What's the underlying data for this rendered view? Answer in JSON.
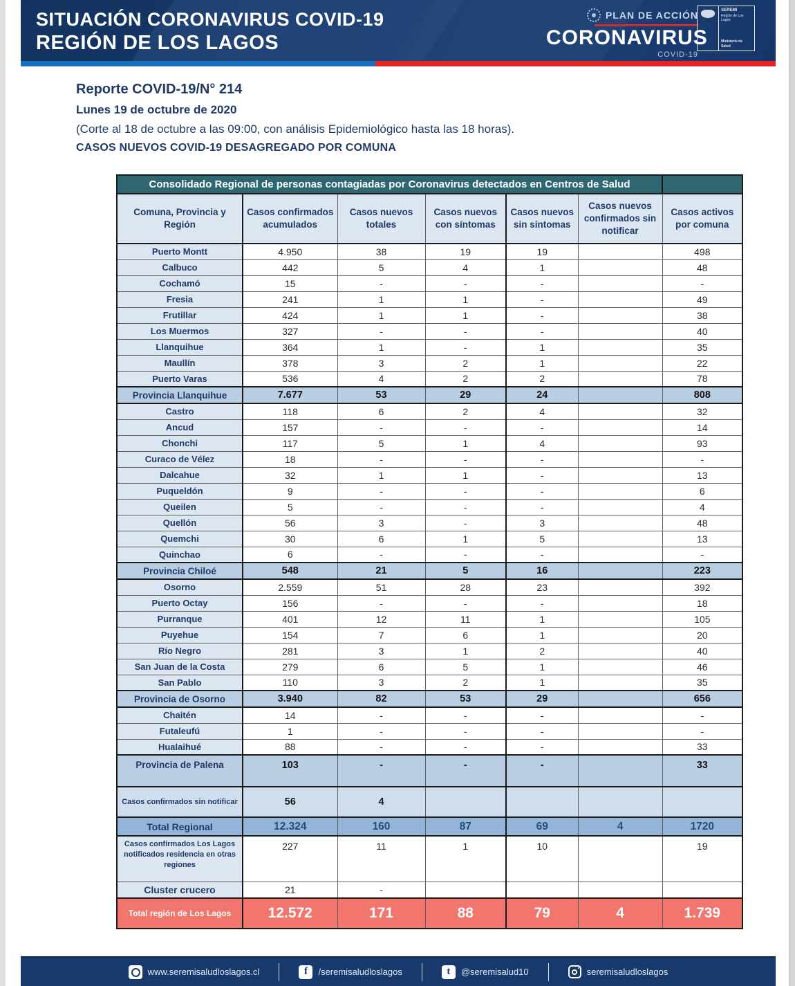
{
  "banner": {
    "title_line1": "SITUACIÓN CORONAVIRUS COVID-19",
    "title_line2": "REGIÓN DE LOS LAGOS",
    "plan_label": "PLAN DE ACCIÓN",
    "brand": "CORONAVIRUS",
    "brand_sub": "COVID-19",
    "seremi_line1": "SEREMI",
    "seremi_line2": "Región de Los Lagos",
    "seremi_line3": "Ministerio de Salud"
  },
  "report": {
    "title": "Reporte COVID-19/N° 214",
    "date": "Lunes 19 de octubre de 2020",
    "note": "(Corte al 18 de octubre a las 09:00, con análisis Epidemiológico hasta las 18 horas).",
    "subtitle": "CASOS NUEVOS COVID-19 DESAGREGADO POR COMUNA"
  },
  "table": {
    "banner_title": "Consolidado Regional de personas contagiadas por Coronavirus detectados en Centros de Salud",
    "columns": [
      "Comuna, Provincia y Región",
      "Casos confirmados acumulados",
      "Casos nuevos totales",
      "Casos nuevos con síntomas",
      "Casos nuevos sin síntomas",
      "Casos nuevos confirmados sin notificar",
      "Casos activos por comuna"
    ],
    "rows": [
      {
        "label": "Puerto Montt",
        "type": "normal",
        "values": [
          "4.950",
          "38",
          "19",
          "19",
          "",
          "498"
        ]
      },
      {
        "label": "Calbuco",
        "type": "normal",
        "values": [
          "442",
          "5",
          "4",
          "1",
          "",
          "48"
        ]
      },
      {
        "label": "Cochamó",
        "type": "normal",
        "values": [
          "15",
          "-",
          "-",
          "-",
          "",
          "-"
        ]
      },
      {
        "label": "Fresia",
        "type": "normal",
        "values": [
          "241",
          "1",
          "1",
          "-",
          "",
          "49"
        ]
      },
      {
        "label": "Frutillar",
        "type": "normal",
        "values": [
          "424",
          "1",
          "1",
          "-",
          "",
          "38"
        ]
      },
      {
        "label": "Los Muermos",
        "type": "normal",
        "values": [
          "327",
          "-",
          "-",
          "-",
          "",
          "40"
        ]
      },
      {
        "label": "Llanquihue",
        "type": "normal",
        "values": [
          "364",
          "1",
          "-",
          "1",
          "",
          "35"
        ]
      },
      {
        "label": "Maullín",
        "type": "normal",
        "values": [
          "378",
          "3",
          "2",
          "1",
          "",
          "22"
        ]
      },
      {
        "label": "Puerto Varas",
        "type": "normal",
        "values": [
          "536",
          "4",
          "2",
          "2",
          "",
          "78"
        ]
      },
      {
        "label": "Provincia Llanquihue",
        "type": "subtotal",
        "values": [
          "7.677",
          "53",
          "29",
          "24",
          "",
          "808"
        ]
      },
      {
        "label": "Castro",
        "type": "normal",
        "values": [
          "118",
          "6",
          "2",
          "4",
          "",
          "32"
        ]
      },
      {
        "label": "Ancud",
        "type": "normal",
        "values": [
          "157",
          "-",
          "-",
          "-",
          "",
          "14"
        ]
      },
      {
        "label": "Chonchi",
        "type": "normal",
        "values": [
          "117",
          "5",
          "1",
          "4",
          "",
          "93"
        ]
      },
      {
        "label": "Curaco de Vélez",
        "type": "normal",
        "values": [
          "18",
          "-",
          "-",
          "-",
          "",
          "-"
        ]
      },
      {
        "label": "Dalcahue",
        "type": "normal",
        "values": [
          "32",
          "1",
          "1",
          "-",
          "",
          "13"
        ]
      },
      {
        "label": "Puqueldón",
        "type": "normal",
        "values": [
          "9",
          "-",
          "-",
          "-",
          "",
          "6"
        ]
      },
      {
        "label": "Queilen",
        "type": "normal",
        "values": [
          "5",
          "-",
          "-",
          "-",
          "",
          "4"
        ]
      },
      {
        "label": "Quellón",
        "type": "normal",
        "values": [
          "56",
          "3",
          "-",
          "3",
          "",
          "48"
        ]
      },
      {
        "label": "Quemchi",
        "type": "normal",
        "values": [
          "30",
          "6",
          "1",
          "5",
          "",
          "13"
        ]
      },
      {
        "label": "Quinchao",
        "type": "normal",
        "values": [
          "6",
          "-",
          "-",
          "-",
          "",
          "-"
        ]
      },
      {
        "label": "Provincia Chiloé",
        "type": "subtotal",
        "values": [
          "548",
          "21",
          "5",
          "16",
          "",
          "223"
        ]
      },
      {
        "label": "Osorno",
        "type": "normal",
        "values": [
          "2.559",
          "51",
          "28",
          "23",
          "",
          "392"
        ]
      },
      {
        "label": "Puerto Octay",
        "type": "normal",
        "values": [
          "156",
          "-",
          "-",
          "-",
          "",
          "18"
        ]
      },
      {
        "label": "Purranque",
        "type": "normal",
        "values": [
          "401",
          "12",
          "11",
          "1",
          "",
          "105"
        ]
      },
      {
        "label": "Puyehue",
        "type": "normal",
        "values": [
          "154",
          "7",
          "6",
          "1",
          "",
          "20"
        ]
      },
      {
        "label": "Río Negro",
        "type": "normal",
        "values": [
          "281",
          "3",
          "1",
          "2",
          "",
          "40"
        ]
      },
      {
        "label": "San Juan de la Costa",
        "type": "normal",
        "values": [
          "279",
          "6",
          "5",
          "1",
          "",
          "46"
        ]
      },
      {
        "label": "San Pablo",
        "type": "normal",
        "values": [
          "110",
          "3",
          "2",
          "1",
          "",
          "35"
        ]
      },
      {
        "label": "Provincia de Osorno",
        "type": "subtotal",
        "values": [
          "3.940",
          "82",
          "53",
          "29",
          "",
          "656"
        ]
      },
      {
        "label": "Chaitén",
        "type": "normal",
        "values": [
          "14",
          "-",
          "-",
          "-",
          "",
          "-"
        ]
      },
      {
        "label": "Futaleufú",
        "type": "normal",
        "values": [
          "1",
          "-",
          "-",
          "-",
          "",
          "-"
        ]
      },
      {
        "label": "Hualaihué",
        "type": "normal",
        "values": [
          "88",
          "-",
          "-",
          "-",
          "",
          "33"
        ]
      },
      {
        "label": "Provincia de Palena",
        "type": "subtotal-tall",
        "values": [
          "103",
          "-",
          "-",
          "-",
          "",
          "33"
        ]
      },
      {
        "label": "Casos confirmados sin notificar",
        "type": "notify",
        "values": [
          "56",
          "4",
          "",
          "",
          "",
          ""
        ]
      },
      {
        "label": "Total Regional",
        "type": "total",
        "values": [
          "12.324",
          "160",
          "87",
          "69",
          "4",
          "1720"
        ]
      },
      {
        "label": "Casos confirmados Los Lagos notificados residencia en otras regiones",
        "type": "region",
        "values": [
          "227",
          "11",
          "1",
          "10",
          "",
          "19"
        ]
      },
      {
        "label": "Cluster crucero",
        "type": "cluster",
        "values": [
          "21",
          "-",
          "",
          "",
          "",
          ""
        ]
      },
      {
        "label": "Total región de Los Lagos",
        "type": "grand",
        "values": [
          "12.572",
          "171",
          "88",
          "79",
          "4",
          "1.739"
        ]
      }
    ]
  },
  "footer": {
    "items": [
      {
        "icon": "web-icon",
        "label": "www.seremisaludloslagos.cl"
      },
      {
        "icon": "facebook-icon",
        "label": "/seremisaludloslagos"
      },
      {
        "icon": "tumblr-icon",
        "label": "@seremisalud10"
      },
      {
        "icon": "instagram-icon",
        "label": "seremisaludloslagos"
      }
    ]
  },
  "colors": {
    "banner_navy": "#17396b",
    "stripe_blue": "#1a6fbd",
    "stripe_red": "#e32726",
    "teal_header": "#2e6771",
    "header_light_blue": "#dce6f1",
    "subtotal_blue": "#b9cde3",
    "total_blue": "#93b5d9",
    "grand_total_red": "#f2766e",
    "navy_text": "#1f3a68"
  }
}
